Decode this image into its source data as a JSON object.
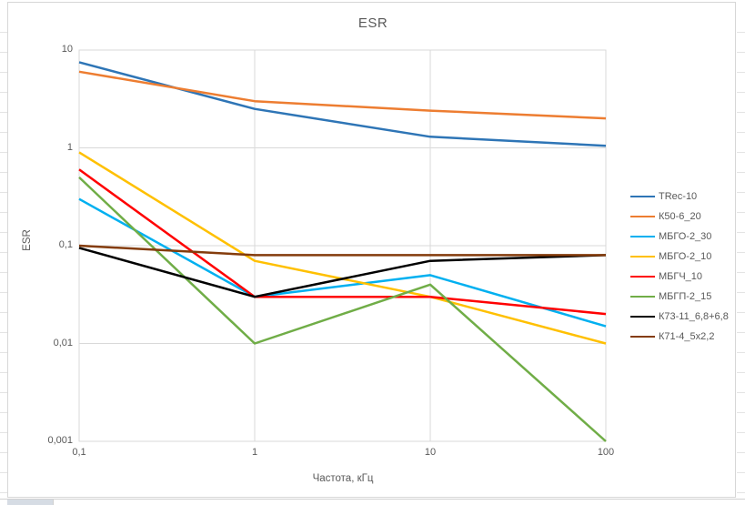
{
  "chart": {
    "title": "ESR",
    "x_axis_title": "Частота, кГц",
    "y_axis_title": "ESR"
  },
  "chart_data": {
    "type": "line",
    "title": "ESR",
    "xlabel": "Частота, кГц",
    "ylabel": "ESR",
    "x_scale": "log",
    "y_scale": "log",
    "xlim": [
      0.1,
      100
    ],
    "ylim": [
      0.001,
      10
    ],
    "grid": true,
    "legend_position": "right",
    "x": [
      0.1,
      1,
      10,
      100
    ],
    "x_tick_labels": [
      "0,1",
      "1",
      "10",
      "100"
    ],
    "y_ticks": [
      10,
      1,
      0.1,
      0.01,
      0.001
    ],
    "y_tick_labels": [
      "10",
      "1",
      "0,1",
      "0,01",
      "0,001"
    ],
    "series": [
      {
        "name": "TRec-10",
        "color": "#2E75B6",
        "values": [
          7.5,
          2.5,
          1.3,
          1.05
        ]
      },
      {
        "name": "К50-6_20",
        "color": "#ED7D31",
        "values": [
          6,
          3,
          2.4,
          2
        ]
      },
      {
        "name": "МБГО-2_30",
        "color": "#00B0F0",
        "values": [
          0.3,
          0.03,
          0.05,
          0.015
        ]
      },
      {
        "name": "МБГО-2_10",
        "color": "#FFC000",
        "values": [
          0.9,
          0.07,
          0.03,
          0.01
        ]
      },
      {
        "name": "МБГЧ_10",
        "color": "#FF0000",
        "values": [
          0.6,
          0.03,
          0.03,
          0.02
        ]
      },
      {
        "name": "МБГП-2_15",
        "color": "#70AD47",
        "values": [
          0.5,
          0.01,
          0.04,
          0.001
        ]
      },
      {
        "name": "К73-11_6,8+6,8",
        "color": "#000000",
        "values": [
          0.095,
          0.03,
          0.07,
          0.08
        ]
      },
      {
        "name": "К71-4_5х2,2",
        "color": "#843C0C",
        "values": [
          0.1,
          0.08,
          0.08,
          0.08
        ]
      }
    ]
  },
  "colors": {
    "grid": "#D9D9D9",
    "plot_border": "#D9D9D9",
    "text": "#595959",
    "chart_border": "#D7D7D7",
    "cell_border": "#D0D0D0",
    "selected_cell_fill": "#D6DCE4"
  }
}
